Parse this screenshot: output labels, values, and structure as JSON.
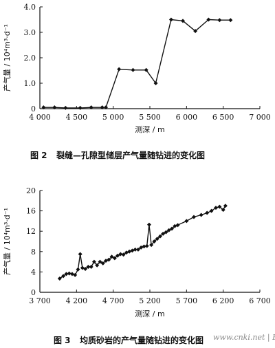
{
  "figures": [
    {
      "caption_number": "图 2",
      "caption_text": "裂缝—孔隙型储层产气量随钻进的变化图"
    },
    {
      "caption_number": "图 3",
      "caption_text": "均质砂岩的产气量随钻进的变化图"
    }
  ],
  "watermark": "www.cnki.net | Egas.cn",
  "chart_data": [
    {
      "type": "line",
      "xlabel": "测深 / m",
      "ylabel": "产气量 / 10⁴m³·d⁻¹",
      "xlim": [
        4000,
        7000
      ],
      "ylim": [
        0,
        4.0
      ],
      "x_ticks": [
        "4 000",
        "4 500",
        "5 000",
        "5 500",
        "6 000",
        "6 500",
        "7 000"
      ],
      "y_ticks": [
        "0",
        "1.0",
        "2.0",
        "3.0",
        "4.0"
      ],
      "series": [
        {
          "x": [
            4050,
            4200,
            4350,
            4550,
            4700,
            4850,
            4900,
            5080,
            5270,
            5450,
            5580,
            5790,
            5950,
            6120,
            6300,
            6450,
            6600
          ],
          "y": [
            0.05,
            0.05,
            0.03,
            0.03,
            0.05,
            0.05,
            0.05,
            1.55,
            1.52,
            1.52,
            1.0,
            3.5,
            3.45,
            3.05,
            3.5,
            3.48,
            3.48
          ]
        }
      ]
    },
    {
      "type": "line",
      "xlabel": "测深 / m",
      "ylabel": "产气量 / 10⁴m³·d⁻¹",
      "xlim": [
        3700,
        6700
      ],
      "ylim": [
        0,
        20
      ],
      "x_ticks": [
        "3 700",
        "4 200",
        "4 700",
        "5 200",
        "5 700",
        "6 200",
        "6 700"
      ],
      "y_ticks": [
        "0",
        "4",
        "8",
        "12",
        "16",
        "20"
      ],
      "series": [
        {
          "x": [
            3970,
            4020,
            4060,
            4100,
            4140,
            4180,
            4220,
            4250,
            4280,
            4320,
            4360,
            4400,
            4440,
            4480,
            4520,
            4560,
            4600,
            4640,
            4680,
            4720,
            4760,
            4800,
            4840,
            4880,
            4920,
            4960,
            5000,
            5040,
            5080,
            5120,
            5160,
            5190,
            5220,
            5260,
            5300,
            5340,
            5380,
            5420,
            5460,
            5500,
            5540,
            5580,
            5700,
            5800,
            5900,
            5980,
            6040,
            6100,
            6150,
            6200,
            6230
          ],
          "y": [
            2.7,
            3.2,
            3.6,
            3.7,
            3.6,
            3.4,
            4.5,
            7.5,
            4.8,
            4.6,
            5.0,
            5.0,
            6.0,
            5.3,
            6.0,
            5.7,
            6.2,
            6.4,
            7.0,
            6.7,
            7.2,
            7.5,
            7.4,
            7.8,
            8.0,
            8.2,
            8.4,
            8.4,
            8.8,
            9.0,
            9.1,
            13.3,
            9.3,
            10.0,
            10.5,
            11.0,
            11.5,
            11.8,
            12.2,
            12.5,
            13.0,
            13.2,
            14.0,
            14.8,
            15.2,
            15.6,
            16.0,
            16.6,
            16.8,
            16.2,
            17.0
          ]
        }
      ]
    }
  ]
}
